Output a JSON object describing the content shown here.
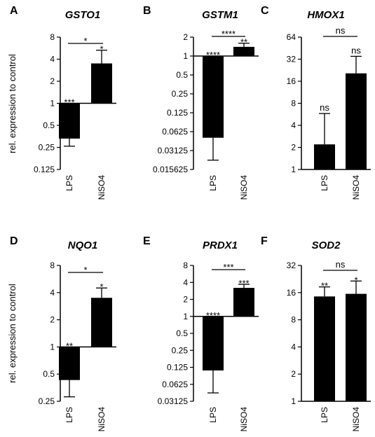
{
  "chart_data": [
    {
      "type": "bar",
      "panel": "A",
      "title": "GSTO1",
      "ylabel": "rel. expression to control",
      "yscale": "log2",
      "yticks": [
        "0.125",
        "0.25",
        "0.5",
        "1",
        "2",
        "4",
        "8"
      ],
      "ylim": [
        0.125,
        8
      ],
      "categories": [
        "LPS",
        "NiSO4"
      ],
      "values": [
        0.33,
        3.5
      ],
      "error": [
        0.26,
        5.3
      ],
      "bar_sig": [
        "***",
        "*"
      ],
      "bracket_sig": "*"
    },
    {
      "type": "bar",
      "panel": "B",
      "title": "GSTM1",
      "ylabel": "",
      "yscale": "log2",
      "yticks": [
        "0.015625",
        "0.03125",
        "0.0625",
        "0.125",
        "0.25",
        "0.5",
        "1",
        "2"
      ],
      "ylim": [
        0.015625,
        2
      ],
      "categories": [
        "LPS",
        "NiSO4"
      ],
      "values": [
        0.05,
        1.4
      ],
      "error": [
        0.022,
        1.6
      ],
      "bar_sig": [
        "****",
        "**"
      ],
      "bracket_sig": "****"
    },
    {
      "type": "bar",
      "panel": "C",
      "title": "HMOX1",
      "ylabel": "",
      "yscale": "log2",
      "yticks": [
        "1",
        "2",
        "4",
        "8",
        "16",
        "32",
        "64"
      ],
      "ylim": [
        1,
        64
      ],
      "categories": [
        "LPS",
        "NiSO4"
      ],
      "values": [
        2.2,
        20.5
      ],
      "error": [
        5.8,
        35
      ],
      "bar_sig": [
        "ns",
        "ns"
      ],
      "bracket_sig": "ns"
    },
    {
      "type": "bar",
      "panel": "D",
      "title": "NQO1",
      "ylabel": "rel. expression to control",
      "yscale": "log2",
      "yticks": [
        "0.25",
        "0.5",
        "1",
        "2",
        "4",
        "8"
      ],
      "ylim": [
        0.25,
        8
      ],
      "categories": [
        "LPS",
        "NiSO4"
      ],
      "values": [
        0.43,
        3.5
      ],
      "error": [
        0.28,
        4.5
      ],
      "bar_sig": [
        "**",
        "*"
      ],
      "bracket_sig": "*"
    },
    {
      "type": "bar",
      "panel": "E",
      "title": "PRDX1",
      "ylabel": "",
      "yscale": "log2",
      "yticks": [
        "0.03125",
        "0.0625",
        "0.125",
        "0.25",
        "0.5",
        "1",
        "2",
        "4",
        "8"
      ],
      "ylim": [
        0.03125,
        8
      ],
      "categories": [
        "LPS",
        "NiSO4"
      ],
      "values": [
        0.11,
        3.2
      ],
      "error": [
        0.044,
        3.7
      ],
      "bar_sig": [
        "****",
        "***"
      ],
      "bracket_sig": "***"
    },
    {
      "type": "bar",
      "panel": "F",
      "title": "SOD2",
      "ylabel": "",
      "yscale": "log2",
      "yticks": [
        "1",
        "2",
        "4",
        "8",
        "16",
        "32"
      ],
      "ylim": [
        1,
        32
      ],
      "categories": [
        "LPS",
        "NiSO4"
      ],
      "values": [
        14.5,
        15.5
      ],
      "error": [
        18.5,
        21.5
      ],
      "bar_sig": [
        "**",
        "*"
      ],
      "bracket_sig": "ns"
    }
  ]
}
